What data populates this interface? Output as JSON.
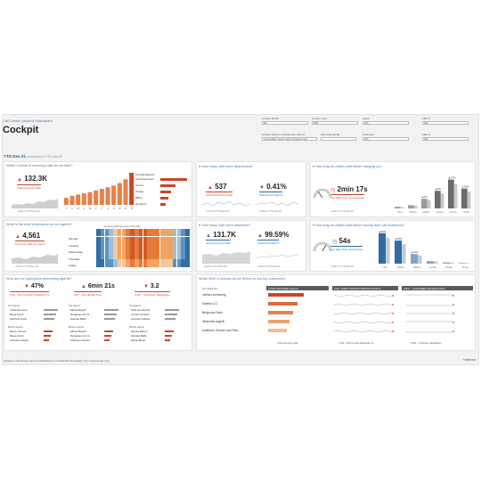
{
  "header": {
    "breadcrumb": "Call Center (airport) Dashboard",
    "title": "Cockpit"
  },
  "filters": [
    {
      "label": "Current Month",
      "value": "Dec"
    },
    {
      "label": "Current Year",
      "value": "2021"
    },
    {
      "label": "Agent",
      "value": "(All)"
    },
    {
      "label": "Filter 3",
      "value": "(All)"
    },
    {
      "label": "Current Period vs Reference Period",
      "value": "Year-to-Date: Current Year vs Previous Year"
    },
    {
      "label": "Period grouping",
      "value": ""
    },
    {
      "label": "Customer",
      "value": "(All)"
    },
    {
      "label": "Filter 4",
      "value": "(All)"
    }
  ],
  "period": {
    "current": "YTD Dec-21",
    "compare": "compared to YTD Dec-20"
  },
  "panels": {
    "volume": {
      "question": "Which volume of incoming calls do we face?",
      "kpi": "132.3K",
      "label": "Total Incoming Calls",
      "sub": "+6.9% vs YTD Dec 20",
      "reasons_title": "Top Call Reasons",
      "reasons": [
        "Technical Issues",
        "Internet",
        "Outage",
        "Billing",
        "Questions"
      ],
      "months": [
        "J",
        "F",
        "M",
        "A",
        "M",
        "J",
        "J",
        "A",
        "S",
        "O",
        "N",
        "D"
      ],
      "bars": [
        0.22,
        0.28,
        0.32,
        0.36,
        0.4,
        0.45,
        0.5,
        0.55,
        0.6,
        0.68,
        0.8,
        1.0
      ],
      "reason_bars": [
        1.0,
        0.55,
        0.4,
        0.3,
        0.2
      ]
    },
    "abandoned": {
      "question": "How many calls were abandoned?",
      "kpi1": "537",
      "label1": "Total Abandoned Calls",
      "sub1": "+4.7% vs YTD Dec 20",
      "kpi2": "0.41%",
      "label2": "Abandoned Calls %",
      "sub2": "-0.0% vs YTD Dec 20"
    },
    "wait_abandon": {
      "question": "How long do callers wait before hanging up?",
      "kpi": "2min 17s",
      "label": "Avg Wait Time until Abandon",
      "sub": "+6.9% vs YTD Dec 20",
      "bins": [
        "<15 s",
        "15-30 s",
        "30-60 s",
        "1-2 min",
        "2-5 min",
        ">5 min"
      ],
      "pcts": [
        "",
        "",
        "4%",
        "8%",
        "17%",
        "10%"
      ],
      "values": [
        0.05,
        0.1,
        0.3,
        0.55,
        0.9,
        0.62
      ]
    },
    "pressure": {
      "question": "What is the level of pressure on our agents?",
      "kpi": "4,561",
      "label": "Incoming Calls per Agent",
      "sub": "+6.9% vs YTD Dec 20",
      "heat_title": "Incoming Calls per Hour of the Day",
      "days": [
        "Monday",
        "Tuesday",
        "Wednesday",
        "Thursday",
        "Friday"
      ]
    },
    "answered": {
      "question": "How many calls were answered?",
      "kpi1": "131.7K",
      "label1": "Total Answered Calls",
      "sub1": "+6.9% vs YTD Dec 20",
      "kpi2": "99.59%",
      "label2": "Answered Calls %",
      "sub2": "+0.0% vs YTD Dec 20"
    },
    "wait_answer": {
      "question": "How long do callers wait before having their call answered?",
      "kpi": "54s",
      "label": "Avg Wait Time until Answer",
      "sub": "+6.9% vs YTD Dec 20",
      "bins": [
        "<15 s",
        "15-30 s",
        "30-60 s",
        "1-2 min",
        "2-5 min",
        ">5 min"
      ],
      "pcts": [
        "46%",
        "35%",
        "12%",
        "",
        "",
        ""
      ],
      "values": [
        0.95,
        0.72,
        0.3,
        0.08,
        0.04,
        0.02
      ]
    },
    "agents": {
      "question": "Who are our top/bottom performing agents?",
      "fcr_kpi": "47%",
      "fcr_label": "FCR - First Contact Resolution %",
      "aht_kpi": "6min 21s",
      "aht_label": "AHT - Avg Handle Time",
      "csat_kpi": "3.2",
      "csat_label": "CSAT - Customer Satisfaction",
      "top_label": "Top Agents",
      "bottom_label": "Bottom Agents",
      "fcr_top": [
        "Christoffel Sove",
        "Berge Fjordt",
        "Reinhold Lewis"
      ],
      "fcr_bottom": [
        "Berton Pascoe",
        "Berge Fjordt",
        "Jannette Fellowe"
      ],
      "aht_top": [
        "Elfrida Bergoll",
        "Margarete Von D...",
        "Danielle Baffin"
      ],
      "aht_bottom": [
        "Elfrida Bergoll",
        "Margarete Von D...",
        "Shiftmann Rantel..."
      ],
      "csat_top": [
        "Shiltmann Rantel",
        "Armand Schuller",
        "Jannette Fellowe"
      ],
      "csat_bottom": [
        "Wookie Barton",
        "Danielle Baffin",
        "Elfride Betoll"
      ]
    },
    "customers": {
      "question": "Which level of service do we deliver to our top customers?",
      "col_customer": "Top Customers",
      "col_calls": "TOTAL INCOMING CALLS",
      "col_fcr": "FCR - FIRST CONTACT RESOLUTION %",
      "col_csat": "CSAT - CUSTOMER SATISFACTION",
      "rows": [
        "Jenkins-Armstrong",
        "Stanley LLC",
        "Bergo and Sons",
        "Weist-McLaughlin",
        "Anderson, Schoen and Pfan..."
      ],
      "calls": [
        1.0,
        0.82,
        0.7,
        0.6,
        0.52
      ],
      "foot_calls": "Total Incoming Calls",
      "foot_fcr": "FCR - First Contact Resolution %",
      "foot_csat": "CSAT - Customer Satisfaction"
    }
  },
  "footer": "Tableau | Call Center (airport) Dashboard | Confidential Information | For internal use only",
  "logo": "+ableau",
  "colors": {
    "accent_red": "#c8462b",
    "accent_orange": "#e8804a",
    "accent_blue": "#2e6da4",
    "grey": "#b8b8b8"
  }
}
